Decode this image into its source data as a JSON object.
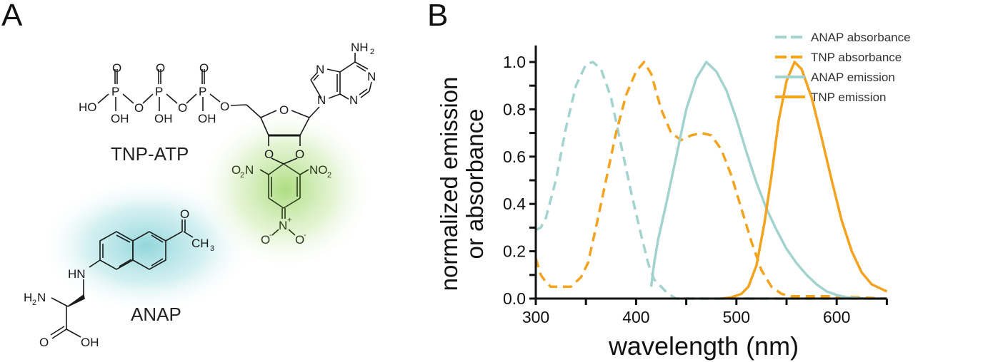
{
  "panels": {
    "a_label": "A",
    "b_label": "B"
  },
  "structures": {
    "tnp_atp_name": "TNP-ATP",
    "anap_name": "ANAP",
    "atoms": {
      "ho": "HO",
      "oh": "OH",
      "o": "O",
      "p": "P",
      "n": "N",
      "nh2": "NH",
      "two": "2",
      "o2n": "O",
      "no2": "NO",
      "nplus": "N",
      "plus": "+",
      "ominus": "O",
      "minus": "-",
      "hn": "HN",
      "h2n_h": "H",
      "h2n_n": "N",
      "ch3": "CH",
      "three": "3"
    },
    "glow_colors": {
      "anap": "#7fd0d6",
      "tnp": "#a9db7a"
    }
  },
  "chart_data": {
    "type": "line",
    "xlabel": "wavelength (nm)",
    "ylabel_line1": "normalized emission",
    "ylabel_line2": "or absorbance",
    "xlim": [
      300,
      650
    ],
    "ylim": [
      0,
      1.05
    ],
    "xticks": [
      300,
      400,
      500,
      600
    ],
    "xtick_labels": [
      "300",
      "400",
      "500",
      "600"
    ],
    "yticks": [
      0.0,
      0.2,
      0.4,
      0.6,
      0.8,
      1.0
    ],
    "ytick_labels": [
      "0.0",
      "0.2",
      "0.4",
      "0.6",
      "0.8",
      "1.0"
    ],
    "grid": false,
    "legend_position": "top-right",
    "series": [
      {
        "name": "ANAP absorbance",
        "color": "#a3d3cf",
        "dashed": true,
        "x": [
          300,
          305,
          310,
          320,
          330,
          340,
          350,
          357,
          365,
          375,
          385,
          395,
          405,
          412,
          418,
          425,
          432,
          440,
          460,
          500,
          550,
          600,
          650
        ],
        "y": [
          0.29,
          0.3,
          0.34,
          0.5,
          0.72,
          0.9,
          0.99,
          1.0,
          0.97,
          0.85,
          0.65,
          0.45,
          0.27,
          0.15,
          0.08,
          0.05,
          0.02,
          0.0,
          0.0,
          0.0,
          0.0,
          0.0,
          0.0
        ]
      },
      {
        "name": "TNP absorbance",
        "color": "#f4a31f",
        "dashed": true,
        "x": [
          300,
          305,
          310,
          315,
          325,
          335,
          345,
          352,
          360,
          370,
          380,
          390,
          400,
          408,
          415,
          425,
          435,
          445,
          455,
          465,
          475,
          485,
          495,
          505,
          515,
          525,
          535,
          545,
          555,
          600,
          650
        ],
        "y": [
          0.17,
          0.1,
          0.07,
          0.05,
          0.05,
          0.05,
          0.09,
          0.15,
          0.3,
          0.5,
          0.7,
          0.86,
          0.96,
          1.0,
          0.95,
          0.8,
          0.7,
          0.67,
          0.69,
          0.7,
          0.69,
          0.63,
          0.52,
          0.38,
          0.24,
          0.12,
          0.05,
          0.02,
          0.01,
          0.01,
          0.0
        ]
      },
      {
        "name": "ANAP emission",
        "color": "#a3d3cf",
        "dashed": false,
        "x": [
          415,
          418,
          422,
          430,
          440,
          450,
          460,
          470,
          480,
          490,
          500,
          510,
          520,
          530,
          540,
          550,
          560,
          570,
          580,
          590,
          600,
          610,
          630,
          650
        ],
        "y": [
          0.05,
          0.15,
          0.25,
          0.4,
          0.6,
          0.8,
          0.93,
          1.0,
          0.96,
          0.88,
          0.76,
          0.62,
          0.49,
          0.38,
          0.29,
          0.21,
          0.15,
          0.1,
          0.06,
          0.03,
          0.015,
          0.005,
          0.0,
          0.0
        ]
      },
      {
        "name": "TNP emission",
        "color": "#f4a31f",
        "dashed": false,
        "x": [
          485,
          495,
          505,
          512,
          520,
          528,
          535,
          542,
          550,
          558,
          565,
          575,
          585,
          595,
          605,
          615,
          625,
          635,
          645,
          650
        ],
        "y": [
          0.0,
          0.005,
          0.02,
          0.05,
          0.14,
          0.32,
          0.52,
          0.75,
          0.92,
          1.0,
          0.97,
          0.85,
          0.68,
          0.5,
          0.33,
          0.2,
          0.11,
          0.06,
          0.04,
          0.03
        ]
      }
    ]
  }
}
